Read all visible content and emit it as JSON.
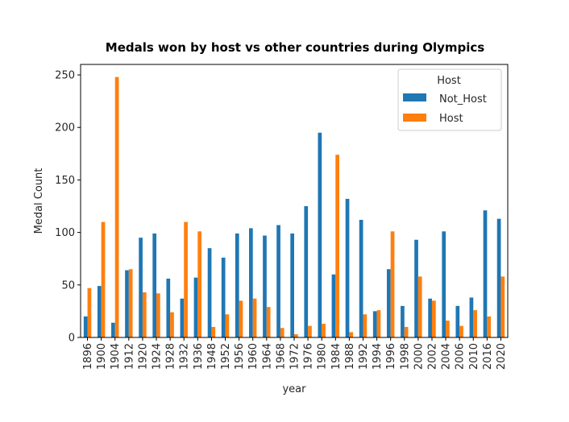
{
  "chart_data": {
    "type": "bar",
    "title": "Medals won by host vs other countries during Olympics",
    "xlabel": "year",
    "ylabel": "Medal Count",
    "ylim": [
      0,
      260
    ],
    "yticks": [
      "0",
      "50",
      "100",
      "150",
      "200",
      "250"
    ],
    "grid": false,
    "legend": {
      "title": "Host",
      "placement": "top-right"
    },
    "categories": [
      "1896",
      "1900",
      "1904",
      "1912",
      "1920",
      "1924",
      "1928",
      "1932",
      "1936",
      "1948",
      "1952",
      "1956",
      "1960",
      "1964",
      "1968",
      "1972",
      "1976",
      "1980",
      "1984",
      "1988",
      "1992",
      "1994",
      "1996",
      "1998",
      "2000",
      "2002",
      "2004",
      "2006",
      "2010",
      "2016",
      "2020"
    ],
    "series": [
      {
        "name": "Not_Host",
        "color": "#1f77b4",
        "values": [
          20,
          49,
          14,
          64,
          95,
          99,
          56,
          37,
          57,
          85,
          76,
          99,
          104,
          97,
          107,
          99,
          125,
          195,
          60,
          132,
          112,
          25,
          65,
          30,
          93,
          37,
          101,
          30,
          38,
          121,
          113
        ]
      },
      {
        "name": "Host",
        "color": "#ff7f0e",
        "values": [
          47,
          110,
          248,
          65,
          43,
          42,
          24,
          110,
          101,
          10,
          22,
          35,
          37,
          29,
          9,
          3,
          11,
          13,
          174,
          5,
          22,
          26,
          101,
          10,
          58,
          35,
          16,
          11,
          26,
          20,
          58
        ]
      }
    ]
  }
}
